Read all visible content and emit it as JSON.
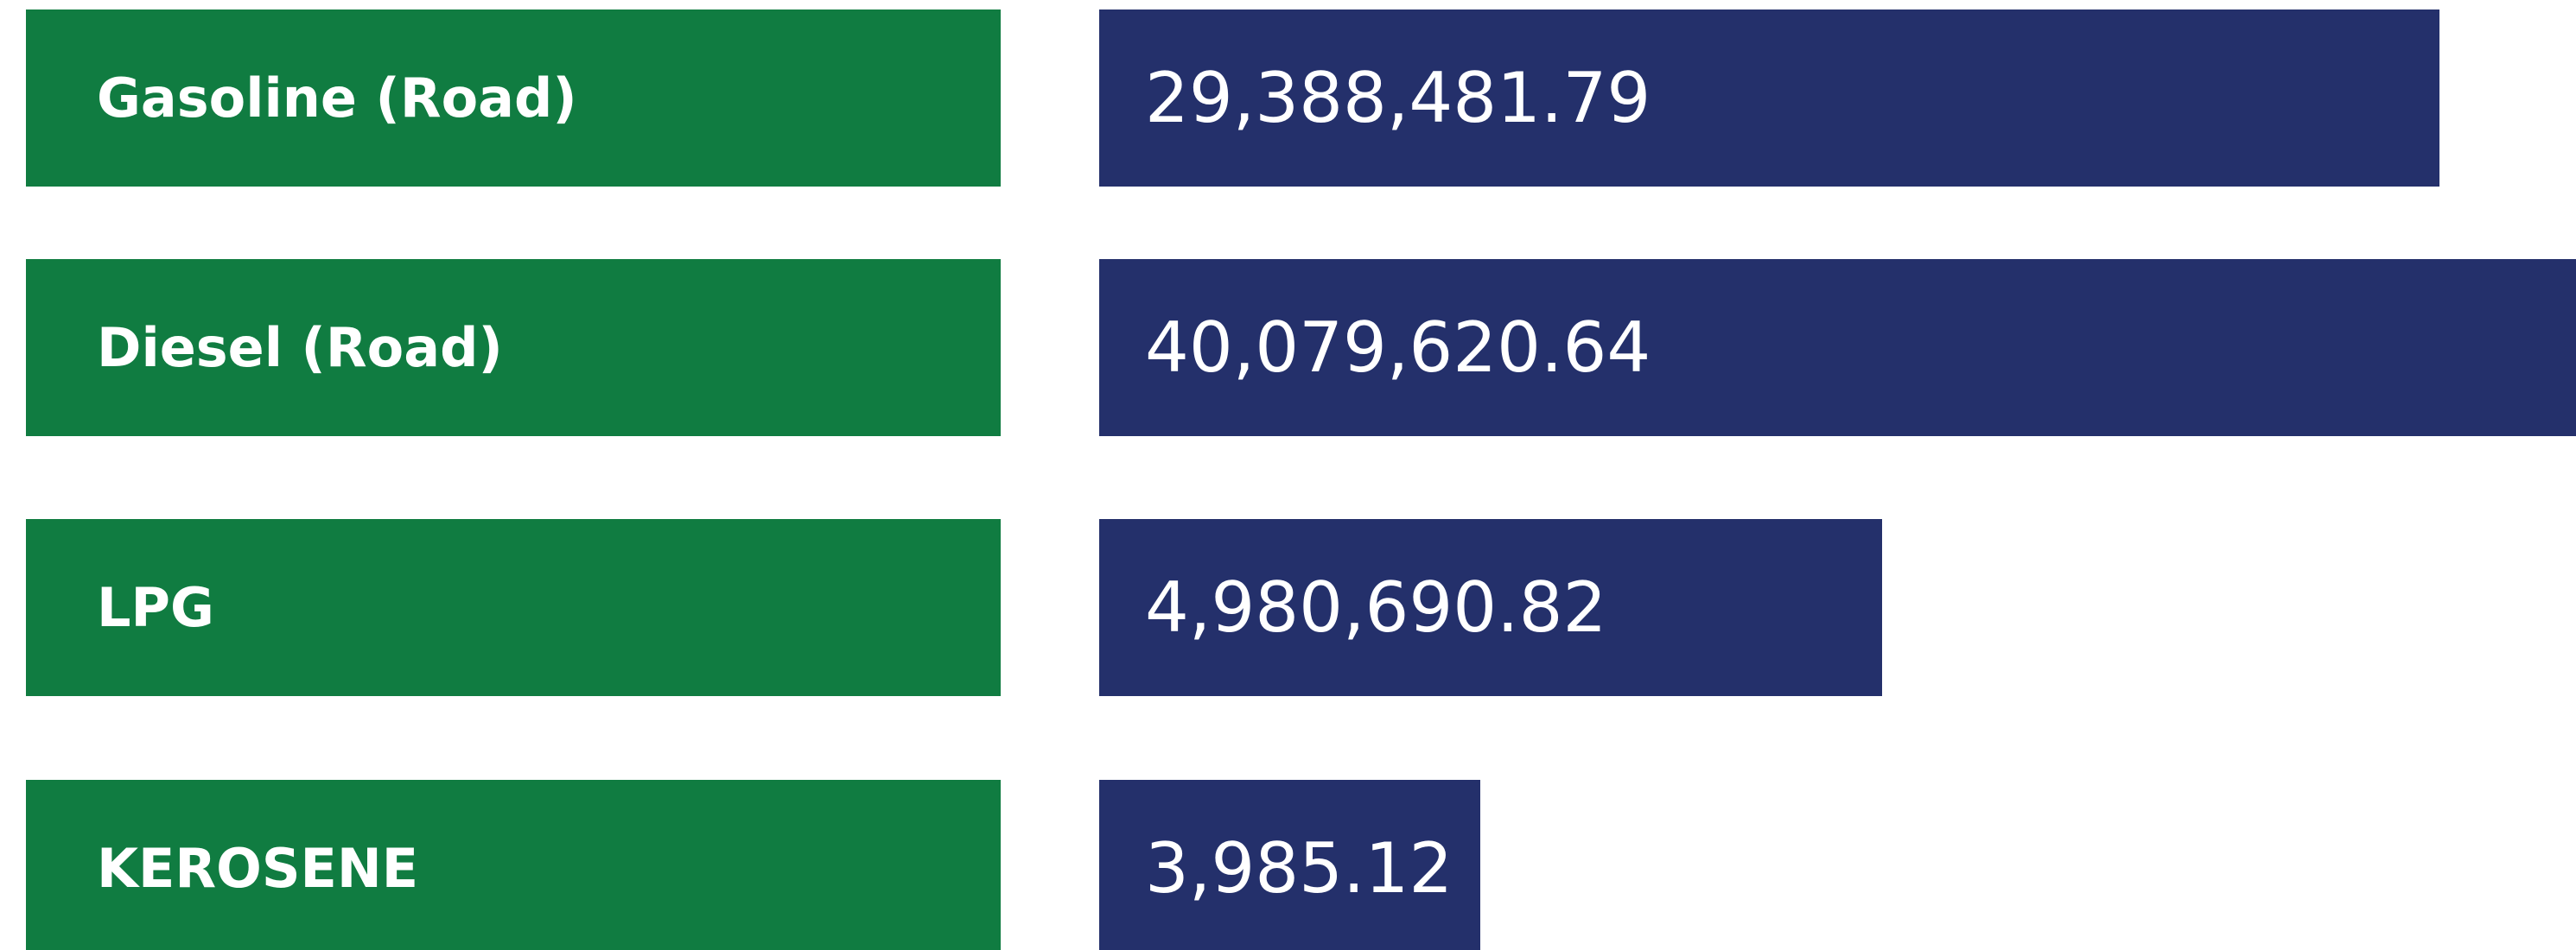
{
  "rows": [
    {
      "label": "Gasoline (Road)",
      "value": "29,388,481.79"
    },
    {
      "label": "Diesel (Road)",
      "value": "40,079,620.64"
    },
    {
      "label": "LPG",
      "value": "4,980,690.82"
    },
    {
      "label": "KEROSENE",
      "value": "3,985.12"
    }
  ]
}
